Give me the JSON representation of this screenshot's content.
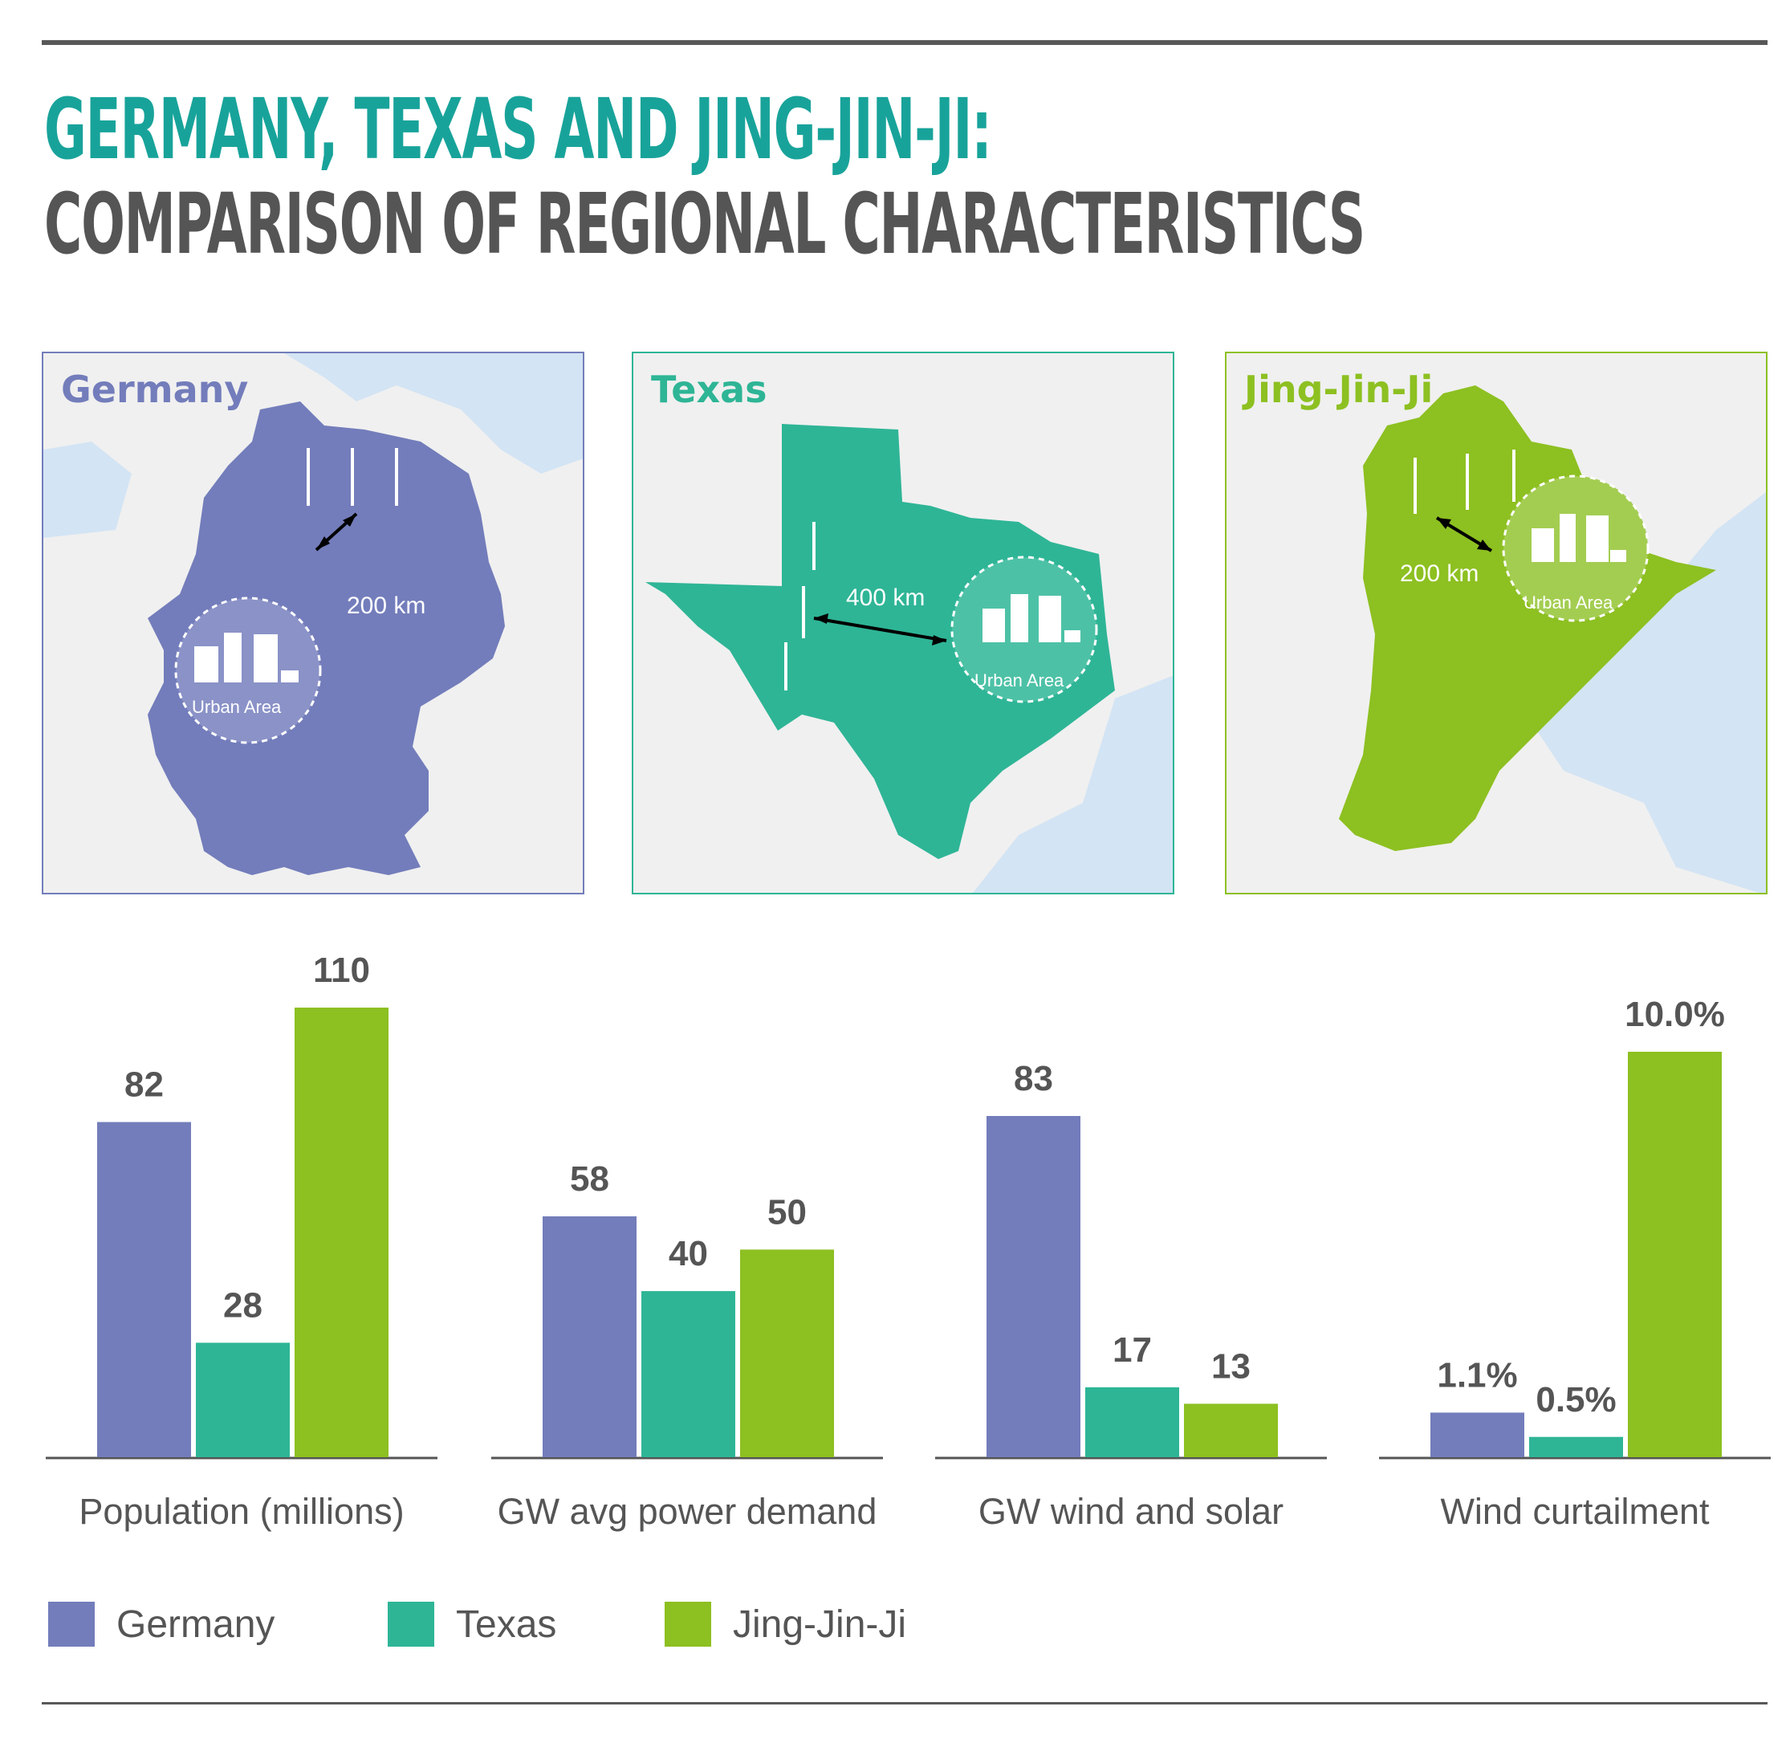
{
  "header": {
    "title_line1": "GERMANY, TEXAS AND JING-JIN-JI:",
    "title_line2": "COMPARISON OF REGIONAL CHARACTERISTICS"
  },
  "maps": [
    {
      "name": "Germany",
      "distance": "200 km",
      "urban_label": "Urban Area"
    },
    {
      "name": "Texas",
      "distance": "400 km",
      "urban_label": "Urban Area"
    },
    {
      "name": "Jing-Jin-Ji",
      "distance": "200 km",
      "urban_label": "Urban Area"
    }
  ],
  "colors": {
    "Germany": "#737dbb",
    "Texas": "#2eb596",
    "Jing-Jin-Ji": "#8dc021",
    "title_accent": "#18a39a",
    "text": "#555555",
    "land": "#f0f0f0",
    "water": "#d3e4f4"
  },
  "legend": {
    "items": [
      "Germany",
      "Texas",
      "Jing-Jin-Ji"
    ]
  },
  "chart_data": [
    {
      "type": "bar",
      "xlabel": "Population (millions)",
      "categories": [
        "Germany",
        "Texas",
        "Jing-Jin-Ji"
      ],
      "values": [
        82,
        28,
        110
      ],
      "labels": [
        "82",
        "28",
        "110"
      ]
    },
    {
      "type": "bar",
      "xlabel": "GW avg power demand",
      "categories": [
        "Germany",
        "Texas",
        "Jing-Jin-Ji"
      ],
      "values": [
        58,
        40,
        50
      ],
      "labels": [
        "58",
        "40",
        "50"
      ]
    },
    {
      "type": "bar",
      "xlabel": "GW wind and solar",
      "categories": [
        "Germany",
        "Texas",
        "Jing-Jin-Ji"
      ],
      "values": [
        83,
        17,
        13
      ],
      "labels": [
        "83",
        "17",
        "13"
      ]
    },
    {
      "type": "bar",
      "xlabel": "Wind curtailment",
      "categories": [
        "Germany",
        "Texas",
        "Jing-Jin-Ji"
      ],
      "values": [
        1.1,
        0.5,
        10.0
      ],
      "labels": [
        "1.1%",
        "0.5%",
        "10.0%"
      ]
    }
  ]
}
